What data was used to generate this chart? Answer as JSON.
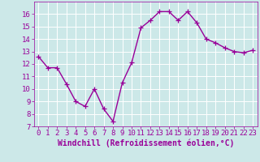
{
  "x": [
    0,
    1,
    2,
    3,
    4,
    5,
    6,
    7,
    8,
    9,
    10,
    11,
    12,
    13,
    14,
    15,
    16,
    17,
    18,
    19,
    20,
    21,
    22,
    23
  ],
  "y": [
    12.6,
    11.7,
    11.7,
    10.4,
    9.0,
    8.6,
    10.0,
    8.4,
    7.4,
    10.5,
    12.1,
    14.9,
    15.5,
    16.2,
    16.2,
    15.5,
    16.2,
    15.3,
    14.0,
    13.7,
    13.3,
    13.0,
    12.9,
    13.1
  ],
  "line_color": "#990099",
  "marker": "+",
  "marker_size": 4,
  "linewidth": 1.0,
  "background_color": "#cce8e8",
  "grid_color": "#ffffff",
  "xlabel": "Windchill (Refroidissement éolien,°C)",
  "xlabel_fontsize": 7,
  "tick_color": "#990099",
  "tick_fontsize": 6.5,
  "ylim": [
    7,
    17
  ],
  "xlim": [
    -0.5,
    23.5
  ],
  "yticks": [
    7,
    8,
    9,
    10,
    11,
    12,
    13,
    14,
    15,
    16
  ],
  "xticks": [
    0,
    1,
    2,
    3,
    4,
    5,
    6,
    7,
    8,
    9,
    10,
    11,
    12,
    13,
    14,
    15,
    16,
    17,
    18,
    19,
    20,
    21,
    22,
    23
  ]
}
